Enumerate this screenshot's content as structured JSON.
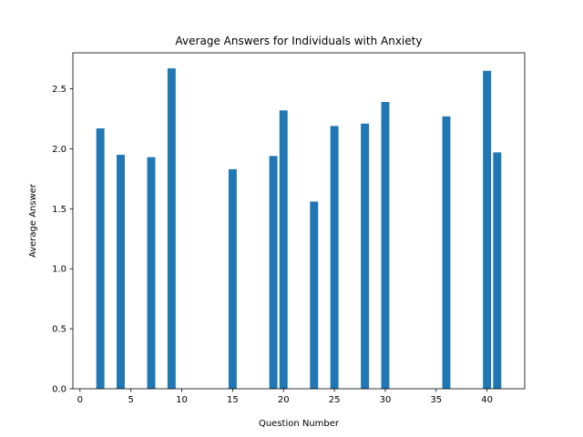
{
  "chart_data": {
    "type": "bar",
    "title": "Average Answers for Individuals with Anxiety",
    "xlabel": "Question Number",
    "ylabel": "Average Answer",
    "x": [
      2,
      4,
      7,
      9,
      15,
      19,
      20,
      23,
      25,
      28,
      30,
      36,
      40,
      41
    ],
    "values": [
      2.17,
      1.95,
      1.93,
      2.67,
      1.83,
      1.94,
      2.32,
      1.56,
      2.19,
      2.21,
      2.39,
      2.27,
      2.65,
      1.97
    ],
    "xlim": [
      -0.7,
      43.7
    ],
    "ylim": [
      0,
      2.8
    ],
    "xticks": [
      0,
      5,
      10,
      15,
      20,
      25,
      30,
      35,
      40
    ],
    "yticks": [
      0.0,
      0.5,
      1.0,
      1.5,
      2.0,
      2.5
    ],
    "xtick_labels": [
      "0",
      "5",
      "10",
      "15",
      "20",
      "25",
      "30",
      "35",
      "40"
    ],
    "ytick_labels": [
      "0.0",
      "0.5",
      "1.0",
      "1.5",
      "2.0",
      "2.5"
    ],
    "bar_color": "#1f77b4",
    "grid": false,
    "legend": "none"
  }
}
